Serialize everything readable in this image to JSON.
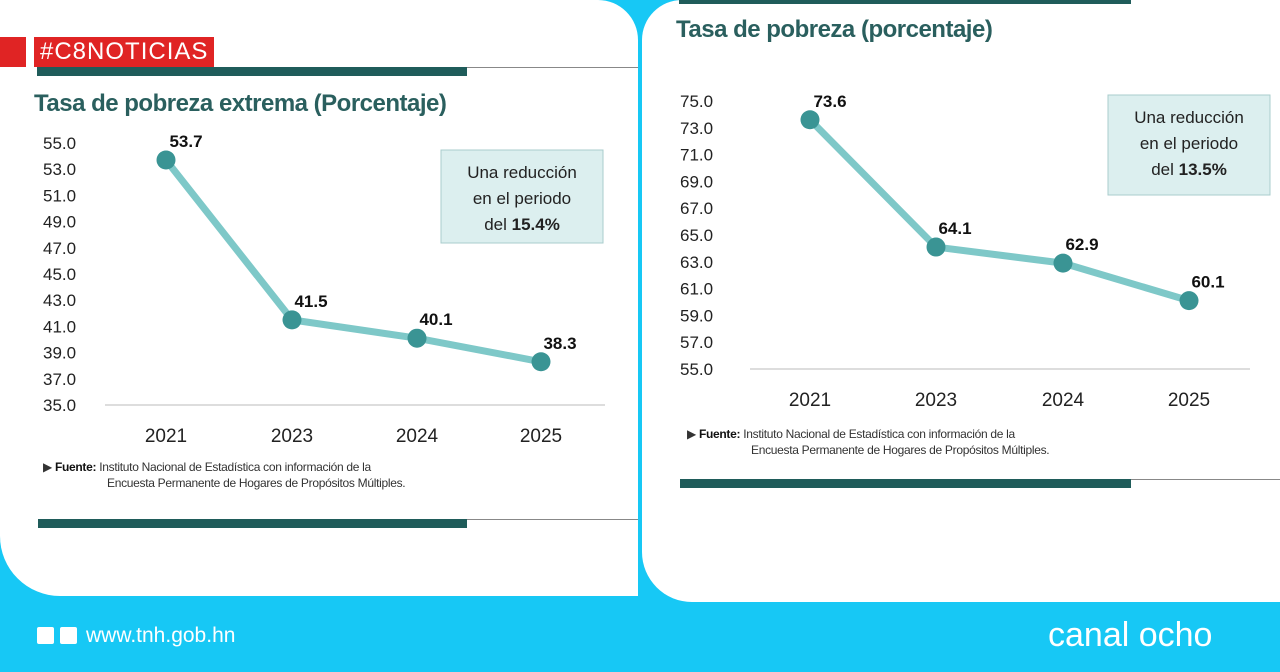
{
  "brand": {
    "hashtag": "#C8NOTICIAS",
    "website": "www.tnh.gob.hn",
    "channel": "canal ocho"
  },
  "colors": {
    "line": "#7ec8c8",
    "marker": "#3a9494",
    "title": "#2a5f5e",
    "accent_bar": "#1f5c5a",
    "footer": "#17c8f5",
    "tag": "#e02424",
    "note_box": "#dcefef"
  },
  "chart_data": [
    {
      "type": "line",
      "title": "Tasa de pobreza extrema (Porcentaje)",
      "categories": [
        "2021",
        "2023",
        "2024",
        "2025"
      ],
      "values": [
        53.7,
        41.5,
        40.1,
        38.3
      ],
      "data_labels": [
        "53.7",
        "41.5",
        "40.1",
        "38.3"
      ],
      "ylim": [
        35,
        55
      ],
      "yticks": [
        "55.0",
        "53.0",
        "51.0",
        "49.0",
        "47.0",
        "45.0",
        "43.0",
        "41.0",
        "39.0",
        "37.0",
        "35.0"
      ],
      "annotation": {
        "text": "Una reducción en el periodo del",
        "value": "15.4%"
      },
      "source_label": "Fuente:",
      "source": "Instituto Nacional de Estadística con información de la",
      "source2": "Encuesta Permanente de Hogares de Propósitos Múltiples."
    },
    {
      "type": "line",
      "title": "Tasa de pobreza (porcentaje)",
      "categories": [
        "2021",
        "2023",
        "2024",
        "2025"
      ],
      "values": [
        73.6,
        64.1,
        62.9,
        60.1
      ],
      "data_labels": [
        "73.6",
        "64.1",
        "62.9",
        "60.1"
      ],
      "ylim": [
        55,
        75
      ],
      "yticks": [
        "75.0",
        "73.0",
        "71.0",
        "69.0",
        "67.0",
        "65.0",
        "63.0",
        "61.0",
        "59.0",
        "57.0",
        "55.0"
      ],
      "annotation": {
        "text": "Una reducción en el periodo del",
        "value": "13.5%"
      },
      "source_label": "Fuente:",
      "source": "Instituto Nacional de Estadística con información de la",
      "source2": "Encuesta Permanente de Hogares de Propósitos Múltiples."
    }
  ]
}
